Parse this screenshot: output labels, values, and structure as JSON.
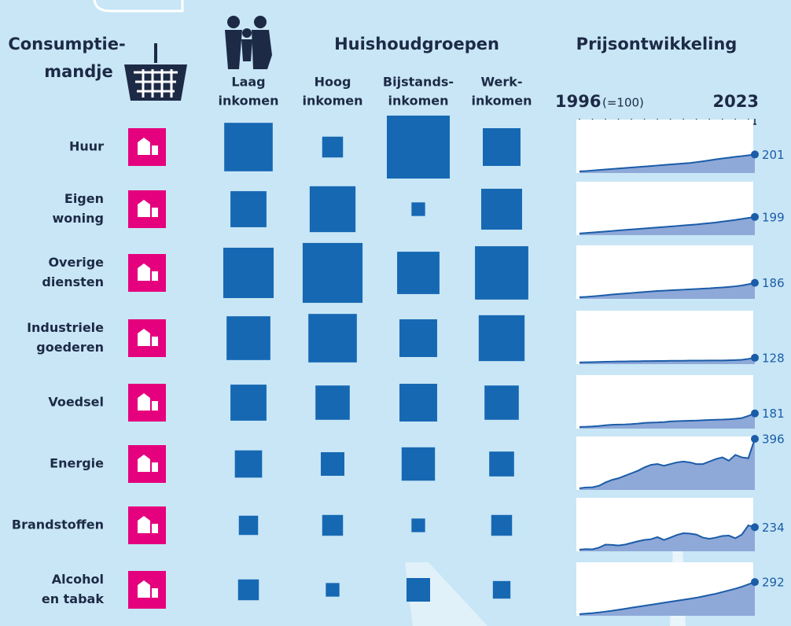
{
  "basket_title": [
    "Consumptie-",
    "mandje"
  ],
  "chart_data": {
    "type": "square-matrix",
    "title": "Huishoudgroepen",
    "categories": [
      [
        "Huur"
      ],
      [
        "Eigen",
        "woning"
      ],
      [
        "Overige",
        "diensten"
      ],
      [
        "Industriele",
        "goederen"
      ],
      [
        "Voedsel"
      ],
      [
        "Energie"
      ],
      [
        "Brandstoffen"
      ],
      [
        "Alcohol",
        "en tabak"
      ]
    ],
    "series": [
      {
        "name": [
          "Laag",
          "inkomen"
        ],
        "color": "#1668b3",
        "values": [
          38,
          21,
          41,
          31,
          21,
          12,
          6,
          7
        ]
      },
      {
        "name": [
          "Hoog",
          "inkomen"
        ],
        "color": "#1668b3",
        "values": [
          7,
          34,
          58,
          38,
          19,
          9,
          7,
          3
        ]
      },
      {
        "name": [
          "Bijstands-",
          "inkomen"
        ],
        "color": "#1668b3",
        "values": [
          64,
          3,
          29,
          23,
          23,
          18,
          3,
          9
        ]
      },
      {
        "name": [
          "Werk-",
          "inkomen"
        ],
        "color": "#1668b3",
        "values": [
          23,
          27,
          46,
          34,
          19,
          10,
          7,
          5
        ]
      }
    ]
  },
  "price_chart": {
    "type": "sparkline",
    "title": "Prijsontwikkeling",
    "base_note": "(=100)",
    "x": [
      1996,
      1997,
      1998,
      1999,
      2000,
      2001,
      2002,
      2003,
      2004,
      2005,
      2006,
      2007,
      2008,
      2009,
      2010,
      2011,
      2012,
      2013,
      2014,
      2015,
      2016,
      2017,
      2018,
      2019,
      2020,
      2021,
      2022,
      2023
    ],
    "ylim": [
      90,
      410
    ],
    "color": "#1a5ca8",
    "fill": "#8ea8d8",
    "series": [
      {
        "values": [
          100,
          102,
          105,
          108,
          111,
          114,
          117,
          120,
          123,
          126,
          129,
          132,
          135,
          138,
          141,
          144,
          147,
          150,
          155,
          160,
          166,
          172,
          177,
          182,
          187,
          191,
          196,
          201
        ]
      },
      {
        "values": [
          100,
          103,
          106,
          109,
          112,
          115,
          118,
          121,
          124,
          127,
          130,
          133,
          136,
          139,
          142,
          145,
          148,
          151,
          154,
          158,
          162,
          166,
          171,
          176,
          181,
          187,
          193,
          199
        ]
      },
      {
        "values": [
          100,
          102,
          105,
          108,
          112,
          116,
          119,
          122,
          125,
          128,
          131,
          134,
          137,
          139,
          141,
          143,
          145,
          147,
          149,
          151,
          153,
          156,
          158,
          161,
          165,
          170,
          177,
          186
        ]
      },
      {
        "values": [
          100,
          101,
          102,
          103,
          104,
          105,
          106,
          106,
          107,
          107,
          108,
          108,
          109,
          109,
          110,
          110,
          110,
          111,
          111,
          111,
          112,
          112,
          112,
          113,
          114,
          116,
          121,
          128
        ]
      },
      {
        "values": [
          100,
          101,
          103,
          106,
          110,
          113,
          114,
          115,
          117,
          120,
          124,
          126,
          127,
          129,
          133,
          135,
          136,
          137,
          138,
          140,
          142,
          143,
          144,
          146,
          149,
          153,
          166,
          181
        ]
      },
      {
        "values": [
          100,
          105,
          106,
          115,
          135,
          150,
          160,
          175,
          190,
          205,
          225,
          240,
          245,
          235,
          245,
          255,
          260,
          255,
          245,
          245,
          260,
          275,
          285,
          265,
          300,
          285,
          280,
          396
        ]
      },
      {
        "values": [
          100,
          103,
          102,
          112,
          130,
          128,
          125,
          130,
          140,
          150,
          158,
          162,
          175,
          158,
          172,
          188,
          198,
          196,
          190,
          172,
          165,
          172,
          182,
          184,
          168,
          190,
          245,
          234
        ]
      },
      {
        "values": [
          100,
          103,
          106,
          110,
          115,
          120,
          126,
          132,
          138,
          144,
          150,
          156,
          162,
          168,
          174,
          180,
          186,
          192,
          198,
          206,
          214,
          222,
          232,
          242,
          252,
          264,
          278,
          292
        ]
      }
    ]
  }
}
